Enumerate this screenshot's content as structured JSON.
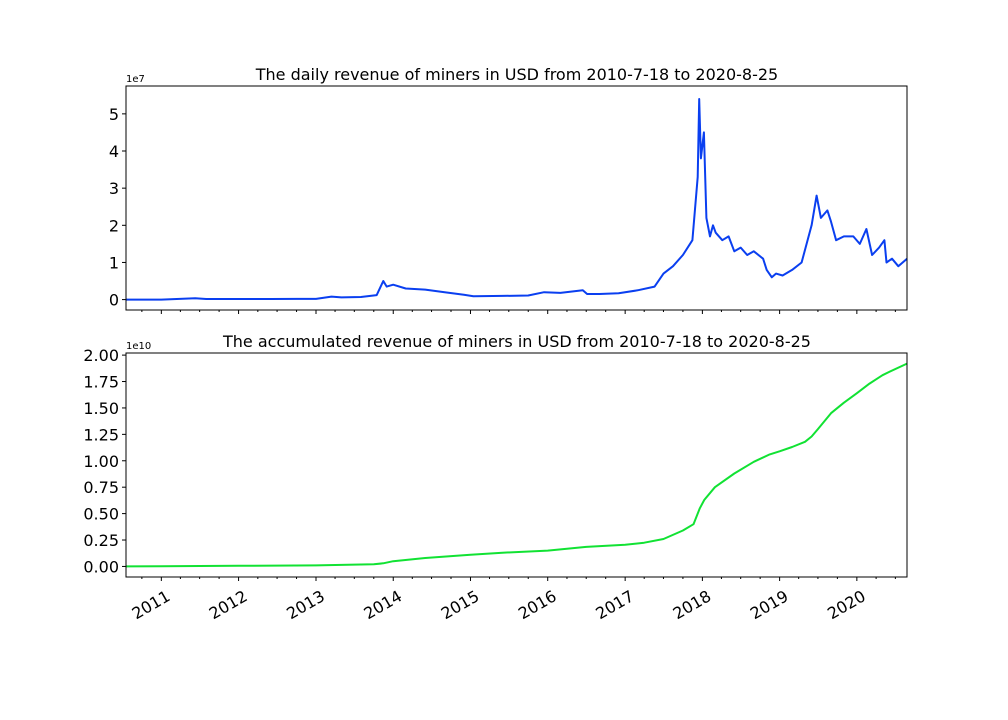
{
  "chart_data": [
    {
      "type": "line",
      "title": "The daily revenue of miners in USD from 2010-7-18 to 2020-8-25",
      "xlabel": "",
      "ylabel": "",
      "y_offset_label": "1e7",
      "xlim": [
        "2010-07-18",
        "2020-08-25"
      ],
      "ylim": [
        -2800000,
        57500000
      ],
      "yticks": [
        0,
        10000000,
        20000000,
        30000000,
        40000000,
        50000000
      ],
      "ytick_labels": [
        "0",
        "1",
        "2",
        "3",
        "4",
        "5"
      ],
      "x_tick_labels_shown": false,
      "grid": false,
      "color": "#0a3ff0",
      "series": [
        {
          "x": [
            "2010-07-18",
            "2011-01-01",
            "2011-06-10",
            "2011-08-01",
            "2012-01-01",
            "2012-06-01",
            "2012-10-01",
            "2013-01-01",
            "2013-03-15",
            "2013-05-01",
            "2013-08-01",
            "2013-10-15",
            "2013-11-15",
            "2013-12-01",
            "2014-01-01",
            "2014-03-01",
            "2014-06-01",
            "2014-09-01",
            "2014-12-01",
            "2015-01-15",
            "2015-06-01",
            "2015-10-01",
            "2015-12-15",
            "2016-03-01",
            "2016-06-15",
            "2016-07-05",
            "2016-09-01",
            "2016-12-01",
            "2017-03-01",
            "2017-05-20",
            "2017-07-01",
            "2017-08-15",
            "2017-10-01",
            "2017-11-15",
            "2017-12-10",
            "2017-12-17",
            "2017-12-25",
            "2018-01-08",
            "2018-01-20",
            "2018-02-06",
            "2018-02-20",
            "2018-03-05",
            "2018-04-05",
            "2018-05-05",
            "2018-06-01",
            "2018-07-01",
            "2018-08-01",
            "2018-09-01",
            "2018-10-15",
            "2018-11-01",
            "2018-11-25",
            "2018-12-15",
            "2019-01-15",
            "2019-03-01",
            "2019-04-15",
            "2019-06-01",
            "2019-06-25",
            "2019-07-15",
            "2019-08-15",
            "2019-09-01",
            "2019-09-25",
            "2019-11-01",
            "2019-12-15",
            "2020-01-15",
            "2020-02-15",
            "2020-03-13",
            "2020-04-15",
            "2020-05-10",
            "2020-05-20",
            "2020-06-15",
            "2020-07-15",
            "2020-08-25"
          ],
          "y": [
            0,
            0,
            350000,
            150000,
            150000,
            150000,
            200000,
            200000,
            800000,
            600000,
            700000,
            1200000,
            5000000,
            3500000,
            4000000,
            3000000,
            2700000,
            2000000,
            1300000,
            900000,
            1000000,
            1100000,
            2000000,
            1800000,
            2500000,
            1500000,
            1500000,
            1700000,
            2500000,
            3500000,
            7000000,
            9000000,
            12000000,
            16000000,
            33000000,
            54000000,
            38000000,
            45000000,
            22000000,
            17000000,
            20000000,
            18000000,
            16000000,
            17000000,
            13000000,
            14000000,
            12000000,
            13000000,
            11000000,
            8000000,
            6000000,
            7000000,
            6500000,
            8000000,
            10000000,
            20000000,
            28000000,
            22000000,
            24000000,
            21000000,
            16000000,
            17000000,
            17000000,
            15000000,
            19000000,
            12000000,
            14000000,
            16000000,
            10000000,
            11000000,
            9000000,
            11000000
          ]
        }
      ]
    },
    {
      "type": "line",
      "title": "The accumulated revenue of miners in USD from 2010-7-18 to 2020-8-25",
      "xlabel": "",
      "ylabel": "",
      "y_offset_label": "1e10",
      "xlim": [
        "2010-07-18",
        "2020-08-25"
      ],
      "ylim": [
        -1000000000,
        20200000000
      ],
      "yticks": [
        0,
        2500000000,
        5000000000,
        7500000000,
        10000000000,
        12500000000,
        15000000000,
        17500000000,
        20000000000
      ],
      "ytick_labels": [
        "0.00",
        "0.25",
        "0.50",
        "0.75",
        "1.00",
        "1.25",
        "1.50",
        "1.75",
        "2.00"
      ],
      "x_tick_labels": [
        "2011",
        "2012",
        "2013",
        "2014",
        "2015",
        "2016",
        "2017",
        "2018",
        "2019",
        "2020"
      ],
      "x_tick_dates": [
        "2011-01-01",
        "2012-01-01",
        "2013-01-01",
        "2014-01-01",
        "2015-01-01",
        "2016-01-01",
        "2017-01-01",
        "2018-01-01",
        "2019-01-01",
        "2020-01-01"
      ],
      "grid": false,
      "color": "#11e233",
      "series": [
        {
          "x": [
            "2010-07-18",
            "2011-01-01",
            "2012-01-01",
            "2013-01-01",
            "2013-06-01",
            "2013-10-01",
            "2013-11-15",
            "2014-01-01",
            "2014-06-01",
            "2015-01-01",
            "2015-06-01",
            "2016-01-01",
            "2016-07-01",
            "2017-01-01",
            "2017-04-01",
            "2017-07-01",
            "2017-10-01",
            "2017-11-20",
            "2017-12-20",
            "2018-01-10",
            "2018-03-01",
            "2018-06-01",
            "2018-09-01",
            "2018-11-15",
            "2019-01-01",
            "2019-03-01",
            "2019-05-01",
            "2019-06-01",
            "2019-07-01",
            "2019-09-01",
            "2019-11-01",
            "2020-01-01",
            "2020-03-01",
            "2020-05-01",
            "2020-06-01",
            "2020-08-25"
          ],
          "y": [
            0,
            10000000,
            60000000,
            100000000,
            150000000,
            200000000,
            300000000,
            500000000,
            800000000,
            1100000000,
            1300000000,
            1500000000,
            1850000000,
            2050000000,
            2250000000,
            2600000000,
            3400000000,
            4000000000,
            5500000000,
            6300000000,
            7500000000,
            8800000000,
            9900000000,
            10600000000,
            10900000000,
            11300000000,
            11800000000,
            12300000000,
            13000000000,
            14500000000,
            15500000000,
            16400000000,
            17300000000,
            18100000000,
            18400000000,
            19200000000
          ]
        }
      ]
    }
  ]
}
